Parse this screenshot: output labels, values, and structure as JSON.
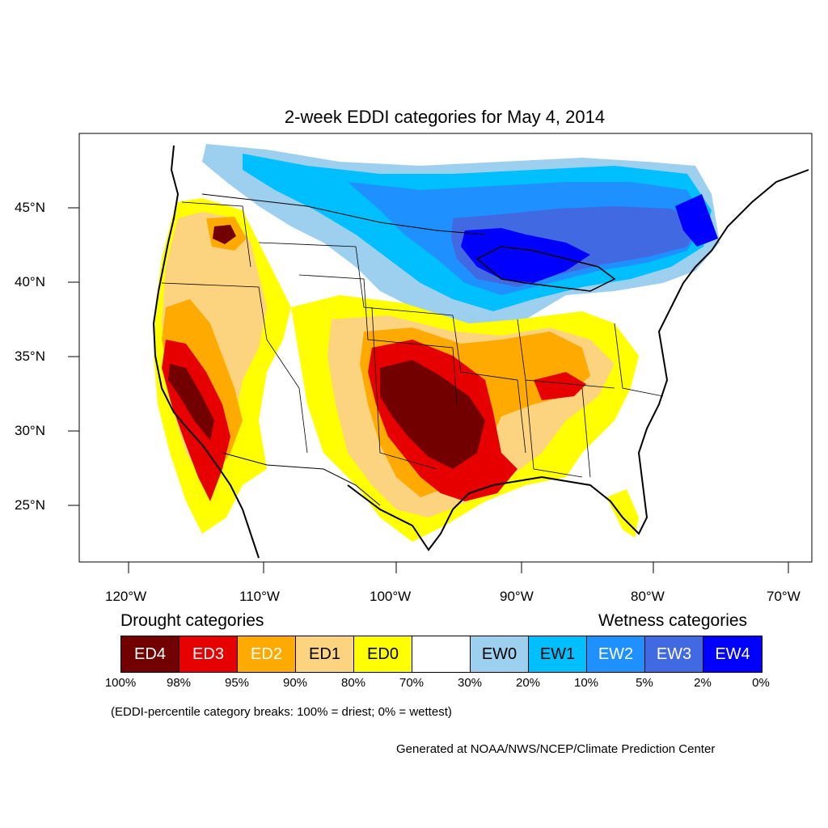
{
  "title": "2-week EDDI categories for May 4, 2014",
  "lat_labels": [
    "45°N",
    "40°N",
    "35°N",
    "30°N",
    "25°N"
  ],
  "lon_labels": [
    "120°W",
    "110°W",
    "100°W",
    "90°W",
    "80°W",
    "70°W"
  ],
  "legend": {
    "drought_heading": "Drought categories",
    "wetness_heading": "Wetness categories",
    "categories": [
      {
        "label": "ED4",
        "color": "#730000",
        "text_color": "#ffffff"
      },
      {
        "label": "ED3",
        "color": "#e60000",
        "text_color": "#ffffff"
      },
      {
        "label": "ED2",
        "color": "#ffaa00",
        "text_color": "#ffffff"
      },
      {
        "label": "ED1",
        "color": "#fcd37f",
        "text_color": "#000000"
      },
      {
        "label": "ED0",
        "color": "#ffff00",
        "text_color": "#000000"
      },
      {
        "label": "",
        "color": "#ffffff",
        "text_color": "#000000"
      },
      {
        "label": "EW0",
        "color": "#9dcfef",
        "text_color": "#000000"
      },
      {
        "label": "EW1",
        "color": "#00bfff",
        "text_color": "#000000"
      },
      {
        "label": "EW2",
        "color": "#1e90ff",
        "text_color": "#ffffff"
      },
      {
        "label": "EW3",
        "color": "#4169e1",
        "text_color": "#ffffff"
      },
      {
        "label": "EW4",
        "color": "#0000ff",
        "text_color": "#ffffff"
      }
    ],
    "percentiles": [
      "100%",
      "98%",
      "95%",
      "90%",
      "80%",
      "70%",
      "30%",
      "20%",
      "10%",
      "5%",
      "2%",
      "0%"
    ]
  },
  "note": "(EDDI-percentile category breaks: 100% = driest; 0% = wettest)",
  "credit": "Generated at NOAA/NWS/NCEP/Climate Prediction Center"
}
